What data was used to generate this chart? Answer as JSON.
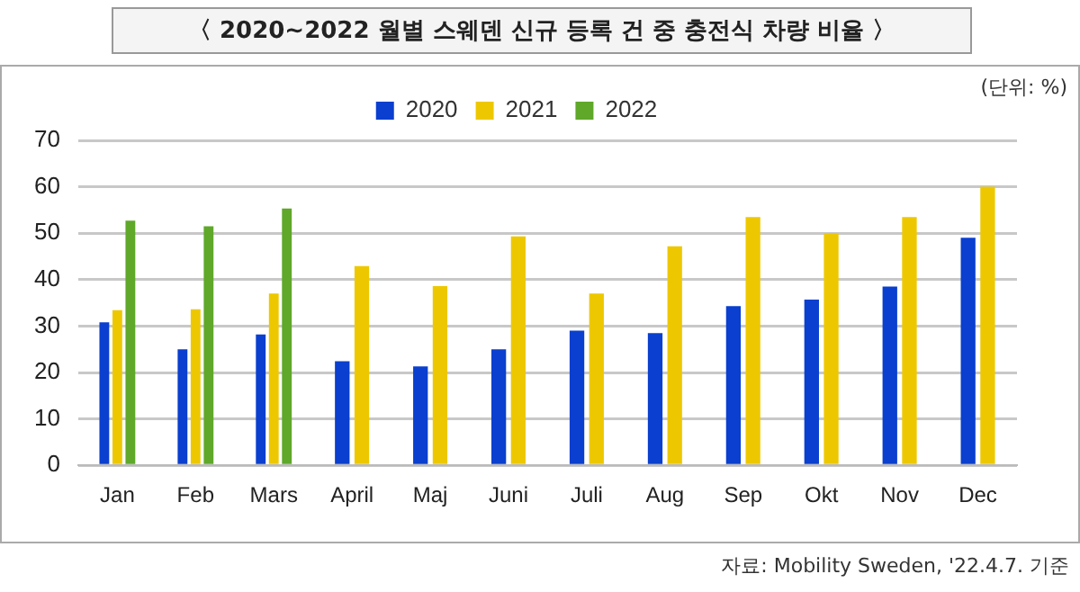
{
  "chart_data": {
    "type": "bar",
    "title": "〈 2020~2022 월별 스웨덴 신규 등록 건 중 충전식 차량 비율 〉",
    "categories": [
      "Jan",
      "Feb",
      "Mars",
      "April",
      "Maj",
      "Juni",
      "Juli",
      "Aug",
      "Sep",
      "Okt",
      "Nov",
      "Dec"
    ],
    "series": [
      {
        "name": "2020",
        "color": "#0a3fcf",
        "values": [
          30.8,
          25,
          28.2,
          22.4,
          21.3,
          25,
          29,
          28.5,
          34.3,
          35.7,
          38.5,
          49
        ]
      },
      {
        "name": "2021",
        "color": "#edc800",
        "values": [
          33.4,
          33.6,
          37,
          42.9,
          38.6,
          49.3,
          37,
          47.2,
          53.5,
          50,
          53.5,
          60
        ]
      },
      {
        "name": "2022",
        "color": "#5fa82a",
        "values": [
          52.7,
          51.5,
          55.3,
          null,
          null,
          null,
          null,
          null,
          null,
          null,
          null,
          null
        ]
      }
    ],
    "ylim": [
      0,
      70
    ],
    "yticks": [
      0,
      10,
      20,
      30,
      40,
      50,
      60,
      70
    ],
    "grid": "y",
    "legend": "top",
    "annotations": [
      "(단위: %)",
      "자료: Mobility Sweden, '22.4.7. 기준"
    ]
  }
}
